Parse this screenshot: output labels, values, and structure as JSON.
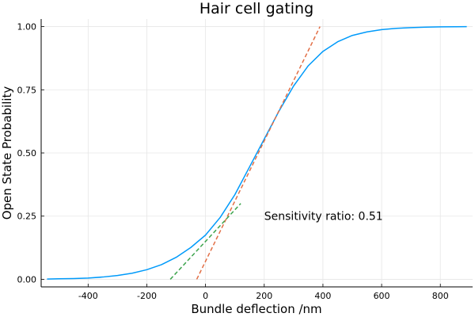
{
  "chart_data": {
    "type": "line",
    "title": "Hair cell gating",
    "xlabel": "Bundle deflection /nm",
    "ylabel": "Open State Probability",
    "xlim": [
      -560,
      910
    ],
    "ylim": [
      -0.03,
      1.03
    ],
    "xticks": [
      -400,
      -200,
      0,
      200,
      400,
      600,
      800
    ],
    "xtick_labels": [
      "-400",
      "-200",
      "0",
      "200",
      "400",
      "600",
      "800"
    ],
    "yticks": [
      0,
      0.25,
      0.5,
      0.75,
      1.0
    ],
    "ytick_labels": [
      "0.00",
      "0.25",
      "0.50",
      "0.75",
      "1.00"
    ],
    "grid": true,
    "legend": "none",
    "series": [
      {
        "color": "#009AFA",
        "style": "solid",
        "x": [
          -540,
          -500,
          -450,
          -400,
          -350,
          -300,
          -250,
          -200,
          -150,
          -100,
          -50,
          0,
          50,
          100,
          150,
          200,
          250,
          300,
          350,
          400,
          450,
          500,
          550,
          600,
          650,
          700,
          750,
          800,
          850,
          890
        ],
        "y": [
          0.001,
          0.002,
          0.003,
          0.005,
          0.009,
          0.015,
          0.024,
          0.038,
          0.058,
          0.087,
          0.126,
          0.175,
          0.245,
          0.335,
          0.445,
          0.555,
          0.665,
          0.765,
          0.845,
          0.902,
          0.94,
          0.965,
          0.979,
          0.988,
          0.993,
          0.996,
          0.998,
          0.999,
          0.9995,
          1.0
        ]
      },
      {
        "color": "#E26F46",
        "style": "dashed",
        "x": [
          -30,
          390
        ],
        "y": [
          0.0,
          1.0
        ]
      },
      {
        "color": "#3DA44D",
        "style": "dashed",
        "x": [
          -120,
          120
        ],
        "y": [
          0.0,
          0.3
        ]
      }
    ],
    "annotations": [
      {
        "text": "Sensitivity ratio: 0.51",
        "x": 200,
        "y": 0.25
      }
    ]
  }
}
